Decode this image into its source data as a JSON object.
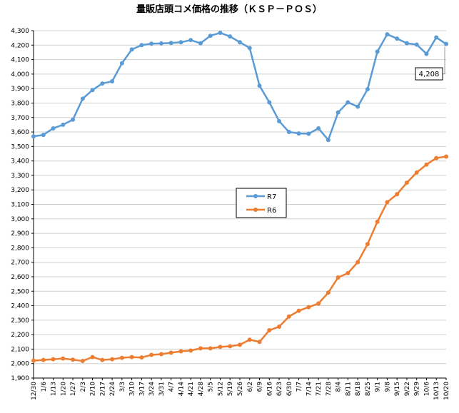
{
  "chart_data": {
    "type": "line",
    "title": "量販店頭コメ価格の推移（ＫＳＰ－ＰＯＳ）",
    "xlabel": "",
    "ylabel": "",
    "ylim": [
      1900,
      4300
    ],
    "ytick_step": 100,
    "categories": [
      "12/30",
      "1/6",
      "1/13",
      "1/20",
      "1/27",
      "2/3",
      "2/10",
      "2/17",
      "2/24",
      "3/3",
      "3/10",
      "3/17",
      "3/24",
      "3/31",
      "4/7",
      "4/14",
      "4/21",
      "4/28",
      "5/5",
      "5/12",
      "5/19",
      "5/26",
      "6/2",
      "6/9",
      "6/16",
      "6/23",
      "6/30",
      "7/7",
      "7/14",
      "7/21",
      "7/28",
      "8/4",
      "8/11",
      "8/18",
      "8/25",
      "9/1",
      "9/8",
      "9/15",
      "9/22",
      "9/29",
      "10/6",
      "10/13",
      "10/20"
    ],
    "x_tick_labels": [
      "12/30",
      "1/6",
      "1/13",
      "1/20",
      "1/27",
      "2/3",
      "2/10",
      "2/17",
      "2/24",
      "3/3",
      "3/10",
      "3/17",
      "3/24",
      "3/31",
      "4/7",
      "4/14",
      "4/21",
      "4/28",
      "5/5",
      "5/12",
      "5/19",
      "5/26",
      "6/2",
      "6/9",
      "6/16",
      "6/23",
      "6/30",
      "7/7",
      "7/14",
      "7/21",
      "7/28",
      "8/4",
      "8/11",
      "8/18",
      "8/25",
      "9/1",
      "9/8",
      "9/15",
      "9/22",
      "9/29",
      "10/6",
      "10/13",
      "10/20"
    ],
    "grid": true,
    "legend_placement": "center",
    "series": [
      {
        "name": "R7",
        "color": "#5b9bd5",
        "values": [
          3570,
          3580,
          3625,
          3650,
          3685,
          3830,
          3890,
          3935,
          3950,
          4075,
          4170,
          4200,
          4210,
          4212,
          4215,
          4220,
          4235,
          4213,
          4265,
          4285,
          4260,
          4220,
          4180,
          3920,
          3805,
          3675,
          3600,
          3590,
          3588,
          3625,
          3545,
          3735,
          3805,
          3775,
          3895,
          4155,
          4275,
          4245,
          4213,
          4204,
          4140,
          4253,
          4208
        ],
        "callout": "4,208"
      },
      {
        "name": "R6",
        "color": "#ed7d31",
        "values": [
          2020,
          2025,
          2030,
          2035,
          2027,
          2018,
          2045,
          2025,
          2030,
          2040,
          2045,
          2042,
          2060,
          2065,
          2075,
          2085,
          2090,
          2105,
          2105,
          2115,
          2120,
          2130,
          2165,
          2150,
          2230,
          2255,
          2325,
          2365,
          2390,
          2415,
          2490,
          2595,
          2625,
          2700,
          2825,
          2980,
          3115,
          3170,
          3250,
          3320,
          3375,
          3420,
          3430
        ]
      }
    ]
  }
}
